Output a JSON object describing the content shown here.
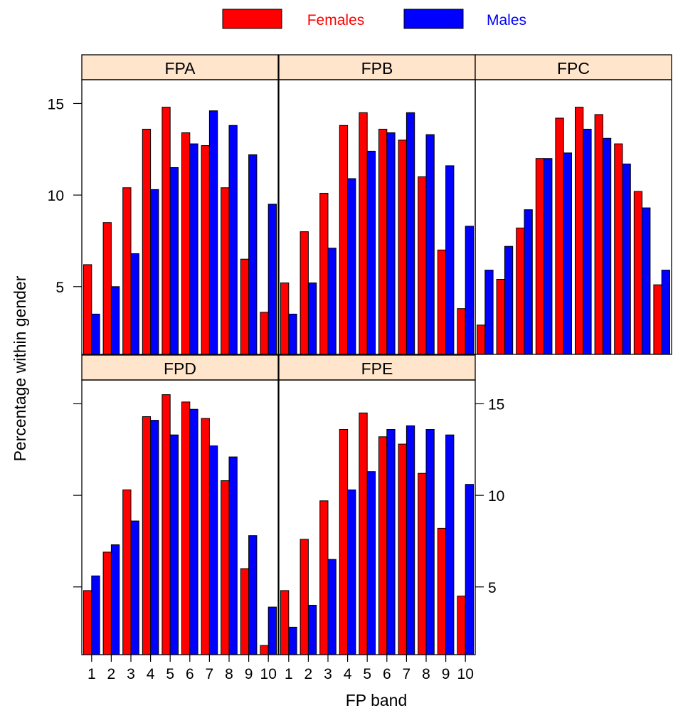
{
  "chart_data": {
    "type": "bar",
    "layout": "trellis 3 columns x 2 rows",
    "xlabel": "FP band",
    "ylabel": "Percentage within gender",
    "ylim": [
      1.3,
      16.3
    ],
    "yticks": [
      5,
      10,
      15
    ],
    "categories": [
      "1",
      "2",
      "3",
      "4",
      "5",
      "6",
      "7",
      "8",
      "9",
      "10"
    ],
    "legend": {
      "placement": "top",
      "items": [
        {
          "name": "Females",
          "color": "#ff0000"
        },
        {
          "name": "Males",
          "color": "#0000ff"
        }
      ]
    },
    "panels": [
      {
        "name": "FPA",
        "series": [
          {
            "name": "Females",
            "values": [
              6.2,
              8.5,
              10.4,
              13.6,
              14.8,
              13.4,
              12.7,
              10.4,
              6.5,
              3.6
            ]
          },
          {
            "name": "Males",
            "values": [
              3.5,
              5.0,
              6.8,
              10.3,
              11.5,
              12.8,
              14.6,
              13.8,
              12.2,
              9.5
            ]
          }
        ]
      },
      {
        "name": "FPB",
        "series": [
          {
            "name": "Females",
            "values": [
              5.2,
              8.0,
              10.1,
              13.8,
              14.5,
              13.6,
              13.0,
              11.0,
              7.0,
              3.8
            ]
          },
          {
            "name": "Males",
            "values": [
              3.5,
              5.2,
              7.1,
              10.9,
              12.4,
              13.4,
              14.5,
              13.3,
              11.6,
              8.3
            ]
          }
        ]
      },
      {
        "name": "FPC",
        "series": [
          {
            "name": "Females",
            "values": [
              2.9,
              5.4,
              8.2,
              12.0,
              14.2,
              14.8,
              14.4,
              12.8,
              10.2,
              5.1
            ]
          },
          {
            "name": "Males",
            "values": [
              5.9,
              7.2,
              9.2,
              12.0,
              12.3,
              13.6,
              13.1,
              11.7,
              9.3,
              5.9
            ]
          }
        ]
      },
      {
        "name": "FPD",
        "series": [
          {
            "name": "Females",
            "values": [
              4.8,
              6.9,
              10.3,
              14.3,
              15.5,
              15.1,
              14.2,
              10.8,
              6.0,
              1.8
            ]
          },
          {
            "name": "Males",
            "values": [
              5.6,
              7.3,
              8.6,
              14.1,
              13.3,
              14.7,
              12.7,
              12.1,
              7.8,
              3.9
            ]
          }
        ]
      },
      {
        "name": "FPE",
        "series": [
          {
            "name": "Females",
            "values": [
              4.8,
              7.6,
              9.7,
              13.6,
              14.5,
              13.2,
              12.8,
              11.2,
              8.2,
              4.5
            ]
          },
          {
            "name": "Males",
            "values": [
              2.8,
              4.0,
              6.5,
              10.3,
              11.3,
              13.6,
              13.8,
              13.6,
              13.3,
              10.6
            ]
          }
        ]
      }
    ]
  }
}
